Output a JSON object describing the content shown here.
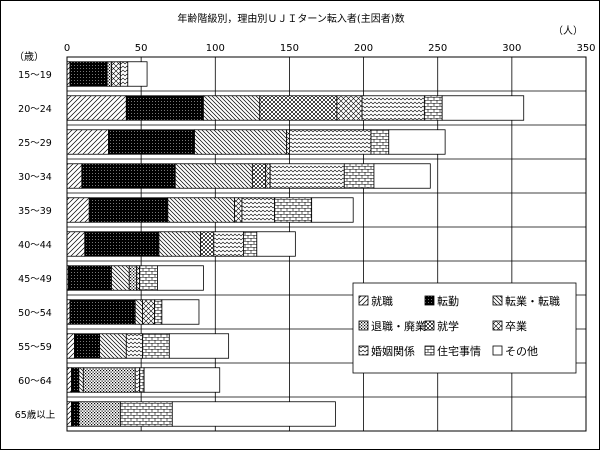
{
  "chart_data": {
    "type": "bar",
    "orientation": "horizontal",
    "stacked": true,
    "title": "年齢階級別，理由別ＵＪＩターン転入者(主因者)数",
    "xunit": "（人）",
    "yunit": "（歳）",
    "xlim": [
      0,
      350
    ],
    "xticks": [
      0,
      50,
      100,
      150,
      200,
      250,
      300,
      350
    ],
    "grid": true,
    "legend_position": "bottom-right",
    "categories": [
      "15～19",
      "20～24",
      "25～29",
      "30～34",
      "35～39",
      "40～44",
      "45～49",
      "50～54",
      "55～59",
      "60～64",
      "65歳以上"
    ],
    "series": [
      {
        "name": "就職",
        "pattern": "diag-sparse",
        "values": [
          2,
          40,
          28,
          10,
          15,
          12,
          1,
          2,
          5,
          3,
          3
        ]
      },
      {
        "name": "転勤",
        "pattern": "solid-dark",
        "values": [
          25,
          52,
          58,
          63,
          53,
          50,
          29,
          44,
          17,
          5,
          5
        ]
      },
      {
        "name": "転業・転職",
        "pattern": "diag-lines",
        "values": [
          0,
          38,
          62,
          52,
          45,
          28,
          12,
          5,
          18,
          3,
          0
        ]
      },
      {
        "name": "退職・廃業",
        "pattern": "dots",
        "values": [
          3,
          0,
          0,
          0,
          0,
          0,
          5,
          0,
          0,
          35,
          28
        ]
      },
      {
        "name": "就学",
        "pattern": "checker-dark",
        "values": [
          0,
          52,
          0,
          9,
          0,
          9,
          0,
          0,
          0,
          0,
          0
        ]
      },
      {
        "name": "卒業",
        "pattern": "crosshatch",
        "values": [
          6,
          17,
          2,
          3,
          5,
          0,
          2,
          8,
          0,
          0,
          0
        ]
      },
      {
        "name": "婚姻関係",
        "pattern": "wavy",
        "values": [
          5,
          42,
          55,
          50,
          22,
          20,
          0,
          0,
          11,
          3,
          0
        ]
      },
      {
        "name": "住宅事情",
        "pattern": "brick",
        "values": [
          0,
          12,
          12,
          20,
          25,
          9,
          12,
          5,
          18,
          3,
          35
        ]
      },
      {
        "name": "その他",
        "pattern": "white",
        "values": [
          13,
          55,
          38,
          38,
          28,
          26,
          31,
          25,
          40,
          51,
          110
        ]
      }
    ]
  }
}
